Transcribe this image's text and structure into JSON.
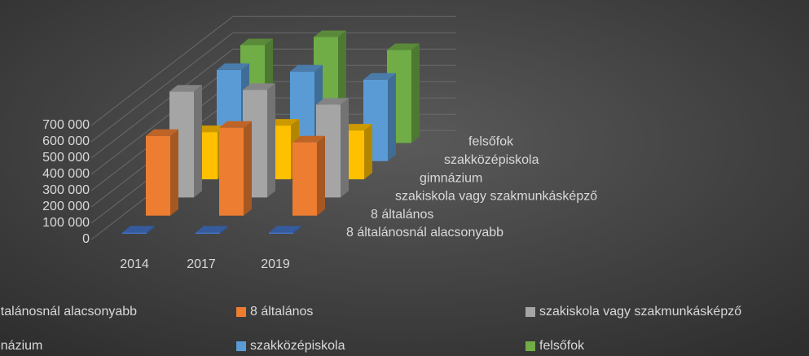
{
  "chart_data": {
    "type": "bar3d",
    "categories": [
      "2014",
      "2017",
      "2019"
    ],
    "ylim": [
      0,
      700000
    ],
    "yticks": [
      0,
      {
        "value": 100000,
        "label": "100 000"
      },
      {
        "value": 200000,
        "label": "200 000"
      },
      {
        "value": 300000,
        "label": "300 000"
      },
      {
        "value": 400000,
        "label": "400 000"
      },
      {
        "value": 500000,
        "label": "500 000"
      },
      {
        "value": 600000,
        "label": "600 000"
      },
      {
        "value": 700000,
        "label": "700 000"
      }
    ],
    "grid": true,
    "legend": "bottom",
    "series": [
      {
        "name": "8 általánosnál alacsonyabb",
        "color": "#4472c4",
        "values": [
          8000,
          8000,
          8000
        ]
      },
      {
        "name": "8 általános",
        "color": "#ed7d31",
        "values": [
          490000,
          540000,
          450000
        ]
      },
      {
        "name": "szakiskola vagy szakmunkásképző",
        "color": "#a5a5a5",
        "values": [
          650000,
          660000,
          570000
        ]
      },
      {
        "name": "gimnázium",
        "color": "#ffc000",
        "values": [
          290000,
          330000,
          300000
        ]
      },
      {
        "name": "szakközépiskola",
        "color": "#5b9bd5",
        "values": [
          560000,
          550000,
          500000
        ]
      },
      {
        "name": "felsőfok",
        "color": "#70ad47",
        "values": [
          600000,
          650000,
          570000
        ]
      }
    ]
  }
}
